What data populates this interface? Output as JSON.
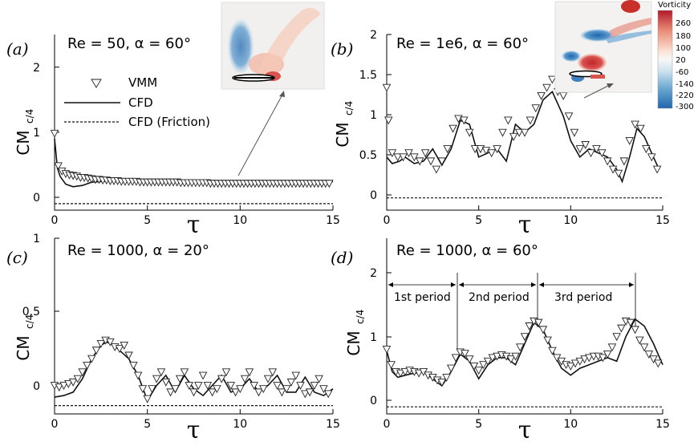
{
  "chart_data": [
    {
      "panel": "(a)",
      "type": "line",
      "title": "Re = 50, α = 60°",
      "xlabel": "τ",
      "ylabel": "CM",
      "ylabel_sub": "c/4",
      "xlim": [
        0,
        15
      ],
      "ylim": [
        -0.1,
        2.6
      ],
      "xticks": [
        0,
        5,
        10,
        15
      ],
      "yticks": [
        0,
        1,
        2
      ],
      "legend": [
        "VMM",
        "CFD",
        "CFD (Friction)"
      ],
      "series": [
        {
          "name": "CFD",
          "x": [
            0,
            0.15,
            0.3,
            0.6,
            1,
            1.5,
            2,
            3,
            4,
            5,
            6,
            7,
            8,
            9,
            10,
            11,
            12,
            13,
            14,
            15
          ],
          "y": [
            1.0,
            0.55,
            0.42,
            0.3,
            0.26,
            0.28,
            0.33,
            0.35,
            0.34,
            0.33,
            0.33,
            0.32,
            0.32,
            0.31,
            0.3,
            0.3,
            0.31,
            0.32,
            0.33,
            0.34
          ]
        },
        {
          "name": "CFD (Friction)",
          "x": [
            0,
            15
          ],
          "y": [
            0.0,
            0.0
          ]
        },
        {
          "name": "VMM",
          "x": [
            0,
            0.2,
            0.4,
            0.6,
            0.8,
            1,
            1.2,
            1.4,
            1.6,
            1.8,
            2,
            2.2,
            2.4,
            2.6,
            2.8,
            3,
            3.2,
            3.4,
            3.6,
            3.8,
            4,
            4.2,
            4.4,
            4.6,
            4.8,
            5,
            5.2,
            5.4,
            5.6,
            5.8,
            6,
            6.2,
            6.4,
            6.6,
            6.8,
            7,
            7.2,
            7.4,
            7.6,
            7.8,
            8,
            8.2,
            8.4,
            8.6,
            8.8,
            9,
            9.2,
            9.4,
            9.6,
            9.8,
            10,
            10.2,
            10.4,
            10.6,
            10.8,
            11,
            11.2,
            11.4,
            11.6,
            11.8,
            12,
            12.2,
            12.4,
            12.6,
            12.8,
            13,
            13.2,
            13.4,
            13.6,
            13.8,
            14,
            14.2,
            14.4,
            14.6,
            14.8
          ],
          "y": [
            1.08,
            0.58,
            0.5,
            0.46,
            0.44,
            0.43,
            0.42,
            0.4,
            0.4,
            0.39,
            0.38,
            0.37,
            0.37,
            0.36,
            0.36,
            0.35,
            0.35,
            0.35,
            0.34,
            0.34,
            0.34,
            0.34,
            0.34,
            0.33,
            0.33,
            0.33,
            0.33,
            0.33,
            0.33,
            0.33,
            0.33,
            0.33,
            0.33,
            0.33,
            0.32,
            0.32,
            0.32,
            0.32,
            0.32,
            0.32,
            0.32,
            0.32,
            0.31,
            0.31,
            0.31,
            0.31,
            0.31,
            0.31,
            0.31,
            0.31,
            0.31,
            0.31,
            0.31,
            0.31,
            0.31,
            0.31,
            0.31,
            0.31,
            0.31,
            0.31,
            0.31,
            0.31,
            0.31,
            0.31,
            0.31,
            0.31,
            0.31,
            0.31,
            0.31,
            0.31,
            0.31,
            0.31,
            0.31,
            0.31,
            0.31
          ]
        }
      ]
    },
    {
      "panel": "(b)",
      "type": "line",
      "title": "Re = 1e6, α = 60°",
      "xlabel": "τ",
      "ylabel": "CM",
      "ylabel_sub": "c/4",
      "xlim": [
        0,
        15
      ],
      "ylim": [
        -0.15,
        2.0
      ],
      "xticks": [
        0,
        5,
        10,
        15
      ],
      "yticks": [
        0,
        0.5,
        1,
        1.5,
        2
      ],
      "series": [
        {
          "name": "CFD",
          "x": [
            0,
            0.3,
            0.7,
            1,
            1.5,
            2,
            2.5,
            3,
            3.5,
            4,
            4.5,
            5,
            5.5,
            6,
            6.5,
            7,
            7.5,
            8,
            8.5,
            9,
            9.3,
            9.6,
            10,
            10.5,
            11,
            11.5,
            12,
            12.5,
            12.8,
            13.2,
            13.6,
            14,
            14.5,
            14.8
          ],
          "y": [
            0.5,
            0.42,
            0.45,
            0.5,
            0.42,
            0.45,
            0.6,
            0.4,
            0.6,
            0.95,
            0.9,
            0.5,
            0.55,
            0.6,
            0.45,
            0.9,
            0.8,
            0.9,
            1.2,
            1.3,
            1.15,
            1.0,
            0.7,
            0.5,
            0.6,
            0.55,
            0.5,
            0.35,
            0.2,
            0.5,
            0.85,
            0.75,
            0.5,
            0.35
          ]
        },
        {
          "name": "CFD (Friction)",
          "x": [
            0,
            15
          ],
          "y": [
            0.0,
            0.0
          ]
        },
        {
          "name": "VMM",
          "x": [
            0,
            0.1,
            0.3,
            0.6,
            0.9,
            1.2,
            1.5,
            1.8,
            2.1,
            2.4,
            2.7,
            3,
            3.3,
            3.6,
            3.9,
            4.2,
            4.5,
            4.8,
            5.1,
            5.4,
            5.7,
            6,
            6.3,
            6.6,
            6.9,
            7.2,
            7.5,
            7.8,
            8.1,
            8.4,
            8.7,
            9,
            9.3,
            9.6,
            9.9,
            10.2,
            10.5,
            10.8,
            11.1,
            11.4,
            11.7,
            12,
            12.3,
            12.6,
            12.9,
            13.2,
            13.5,
            13.8,
            14.1,
            14.4,
            14.7
          ],
          "y": [
            1.35,
            0.95,
            0.55,
            0.5,
            0.5,
            0.55,
            0.5,
            0.45,
            0.55,
            0.45,
            0.35,
            0.45,
            0.6,
            0.85,
            0.97,
            0.95,
            0.8,
            0.6,
            0.6,
            0.58,
            0.55,
            0.6,
            0.8,
            0.95,
            0.75,
            0.8,
            0.8,
            0.95,
            1.1,
            1.25,
            1.35,
            1.45,
            1.3,
            1.25,
            1.0,
            0.8,
            0.6,
            0.65,
            0.55,
            0.6,
            0.55,
            0.45,
            0.35,
            0.3,
            0.45,
            0.7,
            0.9,
            0.85,
            0.6,
            0.5,
            0.35
          ]
        }
      ]
    },
    {
      "panel": "(c)",
      "type": "line",
      "title": "Re = 1000, α = 20°",
      "xlabel": "τ",
      "ylabel": "CM",
      "ylabel_sub": "c/4",
      "xlim": [
        0,
        15
      ],
      "ylim": [
        -0.05,
        1.0
      ],
      "xticks": [
        0,
        5,
        10,
        15
      ],
      "yticks": [
        0,
        0.5,
        1
      ],
      "series": [
        {
          "name": "CFD",
          "x": [
            0,
            0.5,
            1,
            1.5,
            2,
            2.5,
            2.8,
            3.2,
            3.6,
            4,
            4.5,
            5,
            5.5,
            6,
            6.5,
            7,
            7.5,
            8,
            8.5,
            9,
            9.5,
            10,
            10.5,
            11,
            11.5,
            12,
            12.5,
            13,
            13.5,
            14,
            14.5,
            15
          ],
          "y": [
            0.05,
            0.06,
            0.08,
            0.16,
            0.28,
            0.36,
            0.38,
            0.36,
            0.32,
            0.28,
            0.18,
            0.03,
            0.12,
            0.18,
            0.08,
            0.18,
            0.1,
            0.06,
            0.12,
            0.18,
            0.08,
            0.1,
            0.16,
            0.08,
            0.12,
            0.18,
            0.08,
            0.08,
            0.17,
            0.08,
            0.06,
            0.1
          ]
        },
        {
          "name": "CFD (Friction)",
          "x": [
            0,
            15
          ],
          "y": [
            0.0,
            0.0
          ]
        },
        {
          "name": "VMM",
          "x": [
            0,
            0.25,
            0.5,
            0.75,
            1,
            1.25,
            1.5,
            1.75,
            2,
            2.25,
            2.5,
            2.75,
            3,
            3.25,
            3.5,
            3.75,
            4,
            4.25,
            4.5,
            4.75,
            5,
            5.25,
            5.5,
            5.75,
            6,
            6.25,
            6.5,
            6.75,
            7,
            7.25,
            7.5,
            7.75,
            8,
            8.25,
            8.5,
            8.75,
            9,
            9.25,
            9.5,
            9.75,
            10,
            10.25,
            10.5,
            10.75,
            11,
            11.25,
            11.5,
            11.75,
            12,
            12.25,
            12.5,
            12.75,
            13,
            13.25,
            13.5,
            13.75,
            14,
            14.25,
            14.5,
            14.75
          ],
          "y": [
            0.12,
            0.11,
            0.12,
            0.13,
            0.14,
            0.16,
            0.2,
            0.24,
            0.28,
            0.33,
            0.37,
            0.39,
            0.38,
            0.35,
            0.34,
            0.36,
            0.3,
            0.24,
            0.18,
            0.1,
            0.04,
            0.1,
            0.16,
            0.2,
            0.14,
            0.08,
            0.1,
            0.16,
            0.2,
            0.12,
            0.08,
            0.12,
            0.18,
            0.12,
            0.08,
            0.1,
            0.16,
            0.2,
            0.12,
            0.08,
            0.1,
            0.16,
            0.2,
            0.12,
            0.08,
            0.1,
            0.16,
            0.2,
            0.12,
            0.08,
            0.1,
            0.14,
            0.18,
            0.12,
            0.07,
            0.08,
            0.12,
            0.16,
            0.1,
            0.07
          ]
        }
      ]
    },
    {
      "panel": "(d)",
      "type": "line",
      "title": "Re = 1000, α = 60°",
      "xlabel": "τ",
      "ylabel": "CM",
      "ylabel_sub": "c/4",
      "xlim": [
        0,
        15
      ],
      "ylim": [
        -0.1,
        2.4
      ],
      "xticks": [
        0,
        5,
        10,
        15
      ],
      "yticks": [
        0,
        1,
        2
      ],
      "annotations": [
        "1st period",
        "2nd period",
        "3rd period"
      ],
      "series": [
        {
          "name": "CFD",
          "x": [
            0,
            0.3,
            0.6,
            1,
            1.5,
            2,
            2.5,
            3,
            3.5,
            4,
            4.5,
            5,
            5.5,
            6,
            6.5,
            7,
            7.5,
            8,
            8.5,
            9,
            9.5,
            10,
            10.5,
            11,
            11.5,
            12,
            12.5,
            13,
            13.5,
            14,
            14.5,
            15
          ],
          "y": [
            0.8,
            0.5,
            0.42,
            0.45,
            0.48,
            0.5,
            0.4,
            0.3,
            0.5,
            0.75,
            0.65,
            0.4,
            0.6,
            0.7,
            0.7,
            0.6,
            0.9,
            1.2,
            1.1,
            0.8,
            0.55,
            0.45,
            0.55,
            0.6,
            0.65,
            0.7,
            0.65,
            1.0,
            1.25,
            1.15,
            0.9,
            0.6
          ]
        },
        {
          "name": "CFD (Friction)",
          "x": [
            0,
            15
          ],
          "y": [
            0.0,
            0.0
          ]
        },
        {
          "name": "VMM",
          "x": [
            0,
            0.25,
            0.5,
            0.75,
            1,
            1.25,
            1.5,
            1.75,
            2,
            2.25,
            2.5,
            2.75,
            3,
            3.25,
            3.5,
            3.75,
            4,
            4.25,
            4.5,
            4.75,
            5,
            5.25,
            5.5,
            5.75,
            6,
            6.25,
            6.5,
            6.75,
            7,
            7.25,
            7.5,
            7.75,
            8,
            8.25,
            8.5,
            8.75,
            9,
            9.25,
            9.5,
            9.75,
            10,
            10.25,
            10.5,
            10.75,
            11,
            11.25,
            11.5,
            11.75,
            12,
            12.25,
            12.5,
            12.75,
            13,
            13.25,
            13.5,
            13.75,
            14,
            14.25,
            14.5,
            14.75
          ],
          "y": [
            0.82,
            0.6,
            0.5,
            0.48,
            0.5,
            0.52,
            0.5,
            0.48,
            0.5,
            0.45,
            0.42,
            0.38,
            0.35,
            0.42,
            0.55,
            0.7,
            0.78,
            0.76,
            0.68,
            0.58,
            0.52,
            0.6,
            0.65,
            0.7,
            0.72,
            0.74,
            0.72,
            0.68,
            0.72,
            0.85,
            1.0,
            1.15,
            1.22,
            1.2,
            1.1,
            0.95,
            0.8,
            0.7,
            0.65,
            0.6,
            0.58,
            0.62,
            0.65,
            0.68,
            0.7,
            0.72,
            0.72,
            0.7,
            0.75,
            0.85,
            1.0,
            1.12,
            1.22,
            1.2,
            1.1,
            0.95,
            0.85,
            0.75,
            0.68,
            0.62
          ]
        }
      ]
    }
  ],
  "colorbar": {
    "title": "Vorticity",
    "ticks": [
      "260",
      "180",
      "100",
      "20",
      "-60",
      "-140",
      "-220",
      "-300"
    ],
    "colors": [
      "#b2182b",
      "#d6604d",
      "#f4a582",
      "#fddbc7",
      "#f7f7f7",
      "#d1e5f0",
      "#92c5de",
      "#4393c3",
      "#2166ac"
    ]
  },
  "colors": {
    "line": "#111111",
    "marker_fill": "#ffffff"
  }
}
